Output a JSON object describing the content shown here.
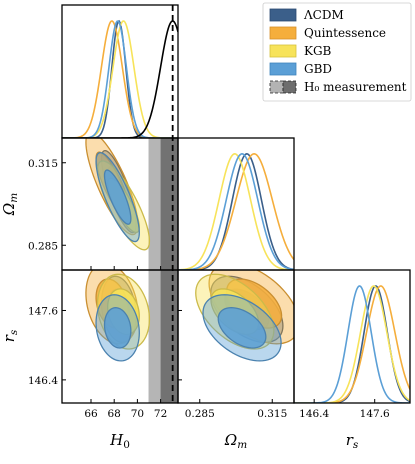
{
  "chart_data": {
    "type": "corner",
    "params": [
      {
        "key": "H0",
        "label_main": "H",
        "label_sub": "0",
        "range": [
          63.5,
          73.5
        ],
        "ticks": [
          "66",
          "68",
          "70",
          "72"
        ],
        "tick_values": [
          66,
          68,
          70,
          72
        ]
      },
      {
        "key": "Om",
        "label_main": "Ω",
        "label_sub": "m",
        "range": [
          0.276,
          0.324
        ],
        "ticks": [
          "0.285",
          "0.315"
        ],
        "tick_values": [
          0.285,
          0.315
        ]
      },
      {
        "key": "rs",
        "label_main": "r",
        "label_sub": "s",
        "range": [
          146.0,
          148.3
        ],
        "ticks": [
          "146.4",
          "147.6"
        ],
        "tick_values": [
          146.4,
          147.6
        ]
      }
    ],
    "series": [
      {
        "name": "ΛCDM",
        "color": "#3b5f8a",
        "H0": [
          68.4,
          0.6
        ],
        "Om": [
          0.3045,
          0.006
        ],
        "rs": [
          147.62,
          0.23
        ],
        "rho_H0_Om": -0.8,
        "rho_H0_rs": -0.2,
        "rho_Om_rs": -0.5
      },
      {
        "name": "Quintessence",
        "color": "#f5ae3c",
        "H0": [
          67.8,
          0.9
        ],
        "Om": [
          0.3075,
          0.0075
        ],
        "rs": [
          147.72,
          0.28
        ],
        "rho_H0_Om": -0.8,
        "rho_H0_rs": -0.25,
        "rho_Om_rs": -0.5
      },
      {
        "name": "KGB",
        "color": "#f7e35a",
        "H0": [
          68.8,
          0.9
        ],
        "Om": [
          0.2995,
          0.0065
        ],
        "rs": [
          147.58,
          0.26
        ],
        "rho_H0_Om": -0.8,
        "rho_H0_rs": -0.2,
        "rho_Om_rs": -0.5
      },
      {
        "name": "GBD",
        "color": "#5b9fd6",
        "H0": [
          68.3,
          0.75
        ],
        "Om": [
          0.3025,
          0.0065
        ],
        "rs": [
          147.3,
          0.23
        ],
        "rho_H0_Om": -0.8,
        "rho_H0_rs": -0.15,
        "rho_Om_rs": -0.45
      }
    ],
    "h0_measurement": {
      "name": "H₀ measurement",
      "mean": 73.04,
      "sigma": 1.04,
      "color": "#000000"
    },
    "legend_location": "top-right"
  }
}
